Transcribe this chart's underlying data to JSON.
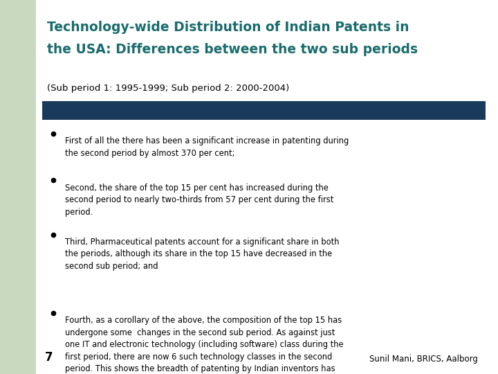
{
  "title_line1": "Technology-wide Distribution of Indian Patents in",
  "title_line2": "the USA: Differences between the two sub periods",
  "subtitle": "(Sub period 1: 1995-1999; Sub period 2: 2000-2004)",
  "title_color": "#1a6b6b",
  "subtitle_color": "#000000",
  "background_color": "#c8d9c0",
  "content_background": "#ffffff",
  "left_bar_color": "#c8d9c0",
  "divider_color": "#1a3a5c",
  "bullet_color": "#000000",
  "footer_text": "Sunil Mani, BRICS, Aalborg",
  "page_number": "7",
  "bullets": [
    "First of all the there has been a significant increase in patenting during\nthe second period by almost 370 per cent;",
    "Second, the share of the top 15 per cent has increased during the\nsecond period to nearly two-thirds from 57 per cent during the first\nperiod.",
    "Third, Pharmaceutical patents account for a significant share in both\nthe periods, although its share in the top 15 have decreased in the\nsecond sub period; and",
    "Fourth, as a corollary of the above, the composition of the top 15 has\nundergone some  changes in the second sub period. As against just\none IT and electronic technology (including software) class during the\nfirst period, there are now 6 such technology classes in the second\nperiod. This shows the breadth of patenting by Indian inventors has\nincreased."
  ]
}
